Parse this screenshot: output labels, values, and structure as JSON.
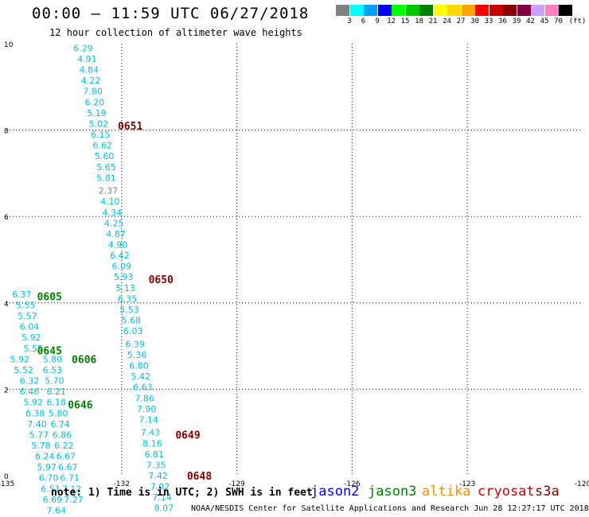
{
  "title": "00:00 – 11:59 UTC 06/27/2018",
  "subtitle": "12 hour collection of altimeter wave heights",
  "legend": {
    "unit": "(ft)",
    "items": [
      {
        "label": "3",
        "color": "#808080"
      },
      {
        "label": "6",
        "color": "#00ffff"
      },
      {
        "label": "9",
        "color": "#00a0ff"
      },
      {
        "label": "12",
        "color": "#0000ff"
      },
      {
        "label": "15",
        "color": "#00ff00"
      },
      {
        "label": "18",
        "color": "#00c800"
      },
      {
        "label": "21",
        "color": "#008000"
      },
      {
        "label": "24",
        "color": "#ffff00"
      },
      {
        "label": "27",
        "color": "#ffd700"
      },
      {
        "label": "30",
        "color": "#ffa500"
      },
      {
        "label": "33",
        "color": "#ff0000"
      },
      {
        "label": "36",
        "color": "#c80000"
      },
      {
        "label": "39",
        "color": "#8b0000"
      },
      {
        "label": "42",
        "color": "#800040"
      },
      {
        "label": "45",
        "color": "#c8a0ff"
      },
      {
        "label": "70",
        "color": "#ff80c0"
      },
      {
        "label": "",
        "color": "#000000"
      }
    ]
  },
  "axes": {
    "x_ticks": [
      "-135",
      "-132",
      "-129",
      "-126",
      "-123",
      "-120"
    ],
    "y_ticks": [
      "10",
      "8",
      "6",
      "4",
      "2",
      "0"
    ],
    "x_range": [
      -135,
      -120
    ],
    "y_range": [
      0,
      10
    ]
  },
  "colors": {
    "jason2": "#0000ff",
    "jason3": "#008000",
    "altika": "#ff8c00",
    "cryosat": "#cc0000",
    "s3a": "#800000",
    "cyan": "#00bfdf",
    "grey": "#808080"
  },
  "passes": [
    {
      "label": "0651",
      "x": -132.1,
      "y": 8.1,
      "sat": "s3a"
    },
    {
      "label": "0650",
      "x": -131.3,
      "y": 4.55,
      "sat": "s3a"
    },
    {
      "label": "0605",
      "x": -134.2,
      "y": 4.15,
      "sat": "jason3"
    },
    {
      "label": "0645",
      "x": -134.2,
      "y": 2.9,
      "sat": "jason3"
    },
    {
      "label": "0606",
      "x": -133.3,
      "y": 2.7,
      "sat": "jason3"
    },
    {
      "label": "0646",
      "x": -133.4,
      "y": 1.65,
      "sat": "jason3"
    },
    {
      "label": "0649",
      "x": -130.6,
      "y": 0.95,
      "sat": "s3a"
    },
    {
      "label": "0648",
      "x": -130.3,
      "y": 0.0,
      "sat": "s3a"
    }
  ],
  "chart_data": {
    "type": "scatter",
    "title": "00:00 – 11:59 UTC 06/27/2018",
    "subtitle": "12 hour collection of altimeter wave heights",
    "xlim": [
      -135,
      -120
    ],
    "ylim": [
      0,
      10
    ],
    "grid": true,
    "x_tick_labels": [
      "-135",
      "-132",
      "-129",
      "-126",
      "-123",
      "-120"
    ],
    "y_tick_labels": [
      "0",
      "2",
      "4",
      "6",
      "8",
      "10"
    ],
    "points": [
      {
        "x": -133.0,
        "y": 9.9,
        "v": "6.29",
        "c": "cyan"
      },
      {
        "x": -132.9,
        "y": 9.65,
        "v": "4.91",
        "c": "cyan"
      },
      {
        "x": -132.85,
        "y": 9.4,
        "v": "4.84",
        "c": "cyan"
      },
      {
        "x": -132.8,
        "y": 9.15,
        "v": "4.22",
        "c": "cyan"
      },
      {
        "x": -132.75,
        "y": 8.9,
        "v": "7.80",
        "c": "cyan"
      },
      {
        "x": -132.7,
        "y": 8.65,
        "v": "6.20",
        "c": "cyan"
      },
      {
        "x": -132.65,
        "y": 8.4,
        "v": "5.19",
        "c": "cyan"
      },
      {
        "x": -132.6,
        "y": 8.15,
        "v": "5.02",
        "c": "cyan"
      },
      {
        "x": -132.55,
        "y": 7.9,
        "v": "6.15",
        "c": "cyan"
      },
      {
        "x": -132.5,
        "y": 7.65,
        "v": "6.62",
        "c": "cyan"
      },
      {
        "x": -132.45,
        "y": 7.4,
        "v": "5.60",
        "c": "cyan"
      },
      {
        "x": -132.4,
        "y": 7.15,
        "v": "5.65",
        "c": "cyan"
      },
      {
        "x": -132.4,
        "y": 6.9,
        "v": "5.81",
        "c": "cyan"
      },
      {
        "x": -132.35,
        "y": 6.6,
        "v": "2.37",
        "c": "grey"
      },
      {
        "x": -132.3,
        "y": 6.35,
        "v": "4.10",
        "c": "cyan"
      },
      {
        "x": -132.25,
        "y": 6.1,
        "v": "4.34",
        "c": "cyan"
      },
      {
        "x": -132.2,
        "y": 5.85,
        "v": "4.25",
        "c": "cyan"
      },
      {
        "x": -132.15,
        "y": 5.6,
        "v": "4.87",
        "c": "cyan"
      },
      {
        "x": -132.1,
        "y": 5.35,
        "v": "4.90",
        "c": "cyan"
      },
      {
        "x": -132.05,
        "y": 5.1,
        "v": "6.42",
        "c": "cyan"
      },
      {
        "x": -132.0,
        "y": 4.85,
        "v": "6.09",
        "c": "cyan"
      },
      {
        "x": -131.95,
        "y": 4.6,
        "v": "5.93",
        "c": "cyan"
      },
      {
        "x": -131.9,
        "y": 4.35,
        "v": "5.13",
        "c": "cyan"
      },
      {
        "x": -131.85,
        "y": 4.1,
        "v": "6.35",
        "c": "cyan"
      },
      {
        "x": -131.8,
        "y": 3.85,
        "v": "5.53",
        "c": "cyan"
      },
      {
        "x": -131.75,
        "y": 3.6,
        "v": "5.68",
        "c": "cyan"
      },
      {
        "x": -131.7,
        "y": 3.35,
        "v": "6.03",
        "c": "cyan"
      },
      {
        "x": -131.65,
        "y": 3.05,
        "v": "6.39",
        "c": "cyan"
      },
      {
        "x": -131.6,
        "y": 2.8,
        "v": "5.36",
        "c": "cyan"
      },
      {
        "x": -131.55,
        "y": 2.55,
        "v": "6.80",
        "c": "cyan"
      },
      {
        "x": -131.5,
        "y": 2.3,
        "v": "5.42",
        "c": "cyan"
      },
      {
        "x": -131.45,
        "y": 2.05,
        "v": "6.63",
        "c": "cyan"
      },
      {
        "x": -131.4,
        "y": 1.8,
        "v": "7.86",
        "c": "cyan"
      },
      {
        "x": -131.35,
        "y": 1.55,
        "v": "7.90",
        "c": "cyan"
      },
      {
        "x": -131.3,
        "y": 1.3,
        "v": "7.14",
        "c": "cyan"
      },
      {
        "x": -131.25,
        "y": 1.0,
        "v": "7.43",
        "c": "cyan"
      },
      {
        "x": -131.2,
        "y": 0.75,
        "v": "8.16",
        "c": "cyan"
      },
      {
        "x": -131.15,
        "y": 0.5,
        "v": "6.81",
        "c": "cyan"
      },
      {
        "x": -131.1,
        "y": 0.25,
        "v": "7.35",
        "c": "cyan"
      },
      {
        "x": -131.05,
        "y": 0.0,
        "v": "7.42",
        "c": "cyan"
      },
      {
        "x": -131.0,
        "y": -0.25,
        "v": "7.02",
        "c": "cyan"
      },
      {
        "x": -130.95,
        "y": -0.5,
        "v": "7.14",
        "c": "cyan"
      },
      {
        "x": -130.9,
        "y": -0.75,
        "v": "8.07",
        "c": "cyan"
      },
      {
        "x": -134.6,
        "y": 4.2,
        "v": "6.37",
        "c": "cyan"
      },
      {
        "x": -134.5,
        "y": 3.95,
        "v": "5.55",
        "c": "cyan"
      },
      {
        "x": -134.45,
        "y": 3.7,
        "v": "5.57",
        "c": "cyan"
      },
      {
        "x": -134.4,
        "y": 3.45,
        "v": "6.04",
        "c": "cyan"
      },
      {
        "x": -134.35,
        "y": 3.2,
        "v": "5.92",
        "c": "cyan"
      },
      {
        "x": -134.3,
        "y": 2.95,
        "v": "5.55",
        "c": "cyan"
      },
      {
        "x": -134.65,
        "y": 2.7,
        "v": "5.92",
        "c": "cyan"
      },
      {
        "x": -134.55,
        "y": 2.45,
        "v": "5.52",
        "c": "cyan"
      },
      {
        "x": -134.4,
        "y": 2.2,
        "v": "6.32",
        "c": "cyan"
      },
      {
        "x": -134.4,
        "y": 1.95,
        "v": "6.46",
        "c": "cyan"
      },
      {
        "x": -134.3,
        "y": 1.7,
        "v": "5.92",
        "c": "cyan"
      },
      {
        "x": -134.25,
        "y": 1.45,
        "v": "6.38",
        "c": "cyan"
      },
      {
        "x": -134.2,
        "y": 1.2,
        "v": "7.40",
        "c": "cyan"
      },
      {
        "x": -134.15,
        "y": 0.95,
        "v": "5.77",
        "c": "cyan"
      },
      {
        "x": -134.1,
        "y": 0.7,
        "v": "5.78",
        "c": "cyan"
      },
      {
        "x": -134.0,
        "y": 0.45,
        "v": "6.24",
        "c": "cyan"
      },
      {
        "x": -133.95,
        "y": 0.2,
        "v": "5.97",
        "c": "cyan"
      },
      {
        "x": -133.9,
        "y": -0.05,
        "v": "6.70",
        "c": "cyan"
      },
      {
        "x": -133.85,
        "y": -0.3,
        "v": "6.51",
        "c": "cyan"
      },
      {
        "x": -133.8,
        "y": -0.55,
        "v": "6.69",
        "c": "cyan"
      },
      {
        "x": -133.7,
        "y": -0.8,
        "v": "7.64",
        "c": "cyan"
      },
      {
        "x": -133.8,
        "y": 2.7,
        "v": "5.80",
        "c": "cyan"
      },
      {
        "x": -133.8,
        "y": 2.45,
        "v": "6.53",
        "c": "cyan"
      },
      {
        "x": -133.75,
        "y": 2.2,
        "v": "5.70",
        "c": "cyan"
      },
      {
        "x": -133.7,
        "y": 1.95,
        "v": "6.21",
        "c": "cyan"
      },
      {
        "x": -133.7,
        "y": 1.7,
        "v": "6.18",
        "c": "cyan"
      },
      {
        "x": -133.65,
        "y": 1.45,
        "v": "5.80",
        "c": "cyan"
      },
      {
        "x": -133.6,
        "y": 1.2,
        "v": "6.74",
        "c": "cyan"
      },
      {
        "x": -133.55,
        "y": 0.95,
        "v": "6.86",
        "c": "cyan"
      },
      {
        "x": -133.5,
        "y": 0.7,
        "v": "6.22",
        "c": "cyan"
      },
      {
        "x": -133.45,
        "y": 0.45,
        "v": "6.67",
        "c": "cyan"
      },
      {
        "x": -133.4,
        "y": 0.2,
        "v": "6.67",
        "c": "cyan"
      },
      {
        "x": -133.35,
        "y": -0.05,
        "v": "6.71",
        "c": "cyan"
      },
      {
        "x": -133.3,
        "y": -0.3,
        "v": "7.12",
        "c": "cyan"
      },
      {
        "x": -133.25,
        "y": -0.55,
        "v": "7.27",
        "c": "cyan"
      }
    ]
  },
  "footer": {
    "note": "note: 1) Time is in UTC; 2) SWH is in feet",
    "sats": [
      {
        "name": "jason2",
        "color": "#0000ff"
      },
      {
        "name": "jason3",
        "color": "#008000"
      },
      {
        "name": "altika",
        "color": "#ff8c00"
      },
      {
        "name": "cryosat",
        "color": "#cc0000"
      },
      {
        "name": "s3a",
        "color": "#800000"
      }
    ],
    "credit": "NOAA/NESDIS Center for Satellite Applications and Research    Jun 28 12:27:17 UTC 2018"
  }
}
